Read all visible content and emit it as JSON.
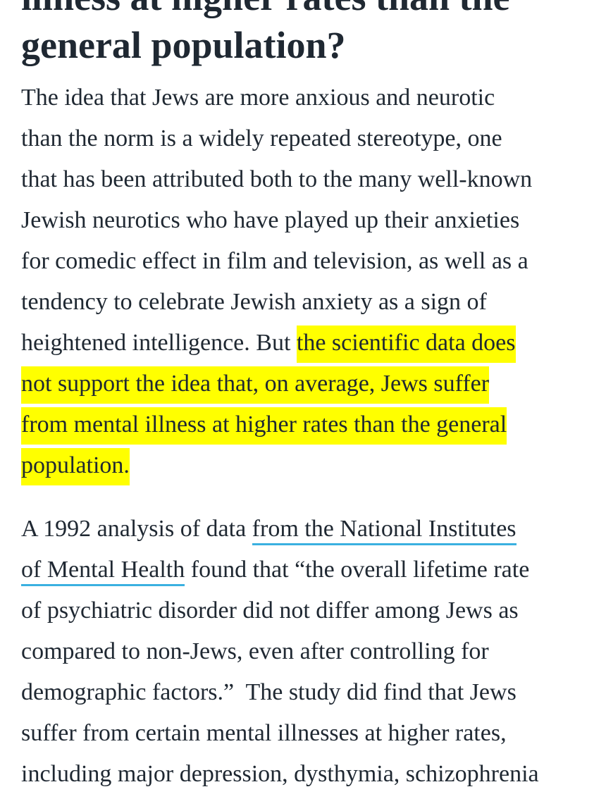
{
  "heading": {
    "lines": [
      "illness at higher rates than the",
      "general population?"
    ]
  },
  "paragraphs": [
    {
      "lines": [
        [
          {
            "text": "The idea that Jews are more anxious and neurotic"
          }
        ],
        [
          {
            "text": "than the norm is a widely repeated stereotype, one"
          }
        ],
        [
          {
            "text": "that has been attributed both to the many well-known"
          }
        ],
        [
          {
            "text": "Jewish neurotics who have played up their anxieties"
          }
        ],
        [
          {
            "text": "for comedic effect in film and television, as well as a"
          }
        ],
        [
          {
            "text": "tendency to celebrate Jewish anxiety as a sign of"
          }
        ],
        [
          {
            "text": "heightened intelligence. But "
          },
          {
            "text": "the scientific data does",
            "mark": "highlight"
          }
        ],
        [
          {
            "text": "not support the idea that, on average, Jews suffer",
            "mark": "highlight"
          }
        ],
        [
          {
            "text": "from mental illness at higher rates than the general",
            "mark": "highlight"
          }
        ],
        [
          {
            "text": "population.",
            "mark": "highlight"
          }
        ]
      ]
    },
    {
      "lines": [
        [
          {
            "text": "A 1992 analysis of data "
          },
          {
            "text": "from the National Institutes",
            "mark": "link"
          }
        ],
        [
          {
            "text": "of Mental Health",
            "mark": "link"
          },
          {
            "text": " found that “the overall lifetime rate"
          }
        ],
        [
          {
            "text": "of psychiatric disorder did not differ among Jews as"
          }
        ],
        [
          {
            "text": "compared to non-Jews, even after controlling for"
          }
        ],
        [
          {
            "text": "demographic factors.”  The study did find that Jews"
          }
        ],
        [
          {
            "text": "suffer from certain mental illnesses at higher rates,"
          }
        ],
        [
          {
            "text": "including major depression, dysthymia, schizophrenia"
          }
        ]
      ]
    }
  ]
}
